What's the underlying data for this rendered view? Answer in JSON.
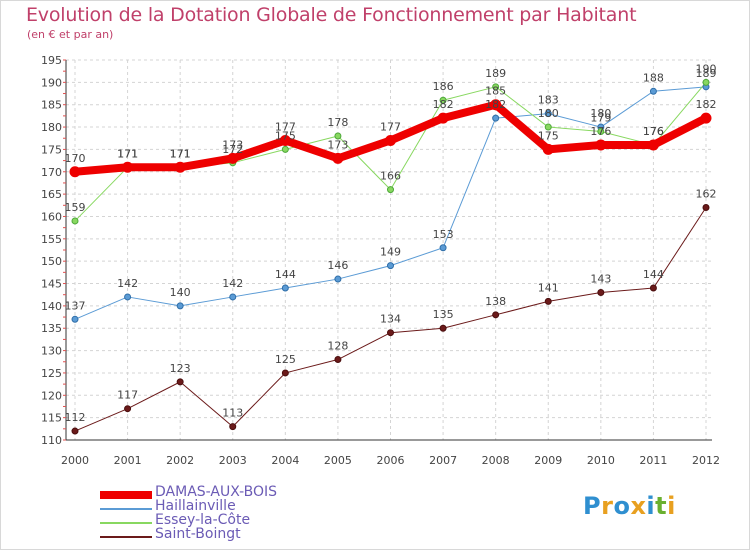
{
  "header": {
    "title": "Evolution de la Dotation Globale de Fonctionnement par Habitant",
    "subtitle": "(en € et par an)"
  },
  "logo": {
    "text": "Proxiti",
    "letters": [
      "P",
      "r",
      "o",
      "x",
      "i",
      "t",
      "i"
    ],
    "colors": [
      "#2f8fd0",
      "#e8a020",
      "#2f8fd0",
      "#e8a020",
      "#2f8fd0",
      "#6ab030",
      "#e8a020"
    ]
  },
  "chart_data": {
    "type": "line",
    "title": "Evolution de la Dotation Globale de Fonctionnement par Habitant",
    "ylabel": "(en € et par an)",
    "xlabel": "",
    "x": [
      "2000",
      "2001",
      "2002",
      "2003",
      "2004",
      "2005",
      "2006",
      "2007",
      "2008",
      "2009",
      "2010",
      "2011",
      "2012"
    ],
    "ylim": [
      110,
      195
    ],
    "yticks": [
      110,
      115,
      120,
      125,
      130,
      135,
      140,
      145,
      150,
      155,
      160,
      165,
      170,
      175,
      180,
      185,
      190,
      195
    ],
    "grid": true,
    "legend": "bottom-left",
    "series": [
      {
        "name": "DAMAS-AUX-BOIS",
        "color": "#ee0000",
        "width": 8,
        "values": [
          170,
          171,
          171,
          173,
          177,
          173,
          177,
          182,
          185,
          175,
          176,
          176,
          182
        ]
      },
      {
        "name": "Haillainville",
        "color": "#5b9bd5",
        "width": 1,
        "values": [
          137,
          142,
          140,
          142,
          144,
          146,
          149,
          153,
          182,
          183,
          180,
          188,
          189
        ]
      },
      {
        "name": "Essey-la-Côte",
        "color": "#88d860",
        "width": 1,
        "values": [
          159,
          171,
          171,
          172,
          175,
          178,
          166,
          186,
          189,
          180,
          179,
          176,
          190
        ]
      },
      {
        "name": "Saint-Boingt",
        "color": "#6b1a1a",
        "width": 1,
        "values": [
          112,
          117,
          123,
          113,
          125,
          128,
          134,
          135,
          138,
          141,
          143,
          144,
          162
        ]
      }
    ]
  }
}
